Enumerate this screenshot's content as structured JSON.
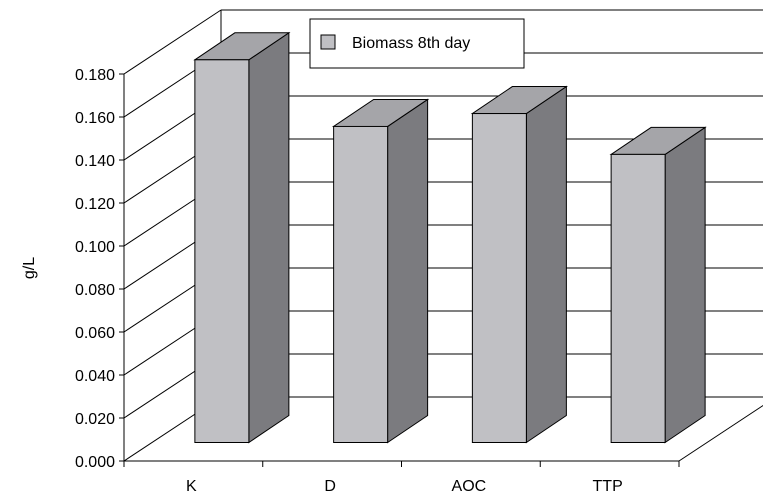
{
  "chart_data": {
    "type": "bar",
    "style": "3d",
    "title": "",
    "xlabel": "",
    "ylabel": "g/L",
    "categories": [
      "K",
      "D",
      "AOC",
      "TTP"
    ],
    "series": [
      {
        "name": "Biomass 8th day",
        "values": [
          0.178,
          0.147,
          0.153,
          0.134
        ]
      }
    ],
    "ylim": [
      0,
      0.18
    ],
    "ytick_labels": [
      "0.000",
      "0.020",
      "0.040",
      "0.060",
      "0.080",
      "0.100",
      "0.120",
      "0.140",
      "0.160",
      "0.180"
    ],
    "grid": true,
    "legend_position": "top",
    "colors": {
      "bar_front": "#c0c0c4",
      "bar_top": "#a5a5a9",
      "bar_side": "#7b7b7f",
      "gridline": "#000000",
      "legend_swatch": "#c0c0c4"
    }
  }
}
